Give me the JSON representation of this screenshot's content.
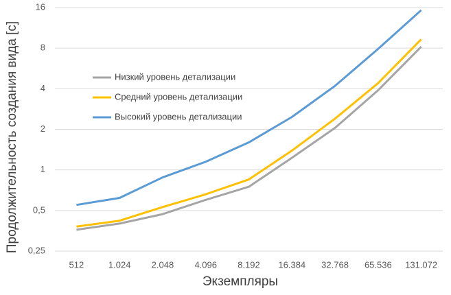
{
  "chart_data": {
    "type": "line",
    "x_label": "Экземпляры",
    "y_label": "Продолжительность создания вида [c]",
    "categories": [
      "512",
      "1.024",
      "2.048",
      "4.096",
      "8.192",
      "16.384",
      "32.768",
      "65.536",
      "131.072"
    ],
    "series": [
      {
        "name": "Низкий уровень детализации",
        "color": "#a5a5a5",
        "values": [
          0.36,
          0.4,
          0.47,
          0.6,
          0.75,
          1.23,
          2.05,
          3.9,
          8.2
        ]
      },
      {
        "name": "Средний уровень детализации",
        "color": "#ffc000",
        "values": [
          0.38,
          0.42,
          0.53,
          0.66,
          0.85,
          1.39,
          2.4,
          4.4,
          9.3
        ]
      },
      {
        "name": "Высокий уровень детализации",
        "color": "#5b9bd5",
        "values": [
          0.55,
          0.62,
          0.88,
          1.15,
          1.6,
          2.47,
          4.2,
          7.9,
          15.3
        ]
      }
    ],
    "y_scale": "log",
    "ylim": [
      0.25,
      16
    ],
    "yticks": [
      {
        "value": 0.25,
        "label": "0,25"
      },
      {
        "value": 0.5,
        "label": "0,5"
      },
      1,
      2,
      4,
      8,
      16
    ],
    "grid": true,
    "legend_position": "center-left"
  }
}
